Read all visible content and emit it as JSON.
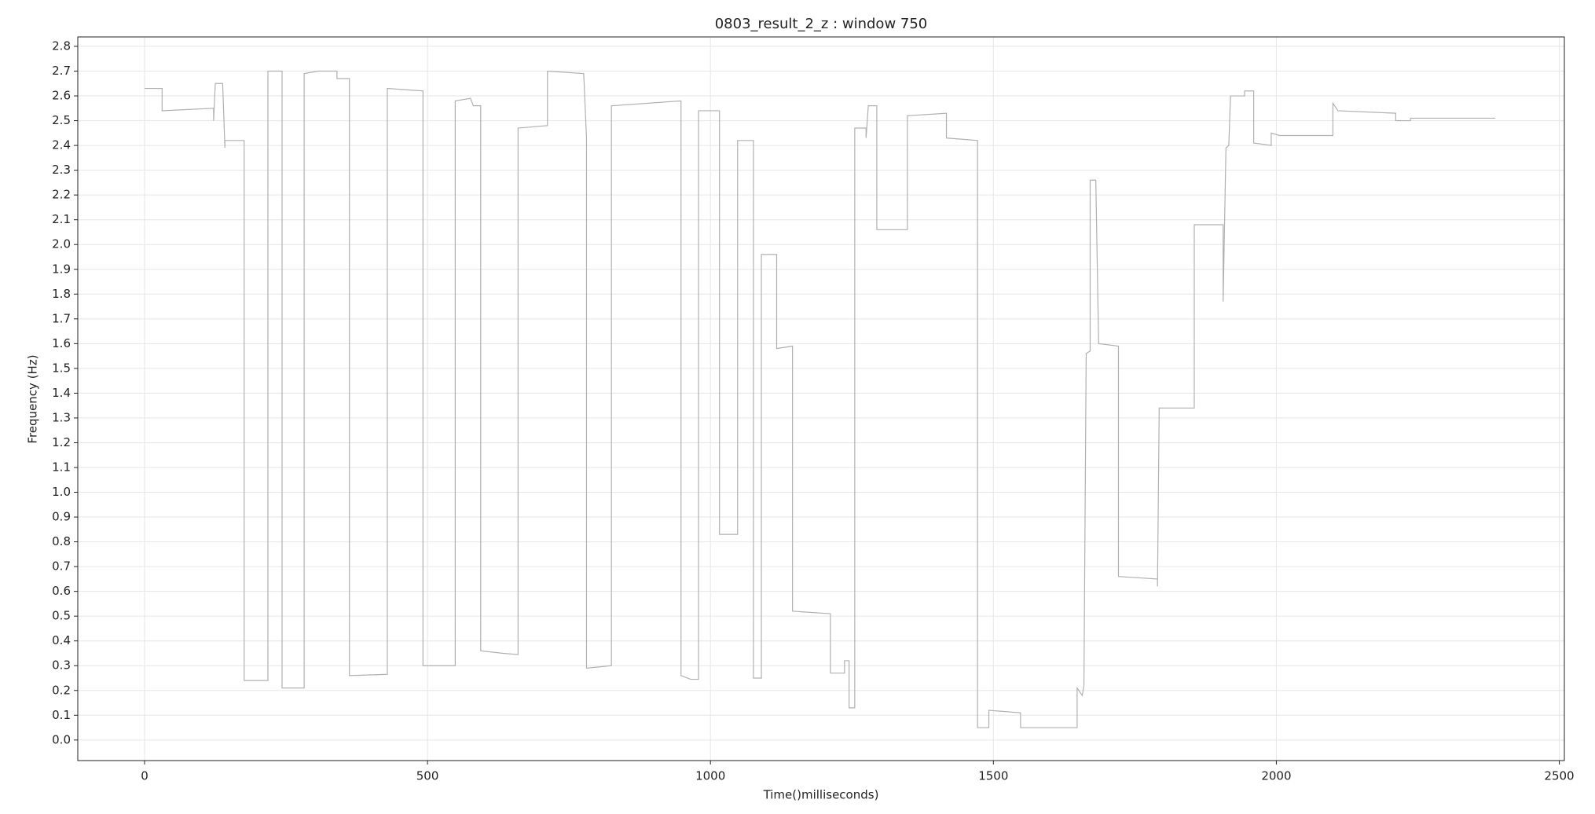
{
  "chart_data": {
    "type": "line",
    "title": "0803_result_2_z : window 750",
    "xlabel": "Time()milliseconds)",
    "ylabel": "Frequency (Hz)",
    "color": "#b0b0b0",
    "grid": true,
    "x": [
      0,
      31,
      31,
      122,
      122,
      125,
      138,
      142,
      142,
      176,
      176,
      218,
      218,
      243,
      243,
      282,
      282,
      307,
      340,
      340,
      362,
      362,
      429,
      429,
      492,
      492,
      549,
      549,
      576,
      581,
      594,
      594,
      634,
      660,
      660,
      712,
      712,
      776,
      781,
      781,
      825,
      825,
      948,
      948,
      965,
      979,
      979,
      1016,
      1016,
      1048,
      1048,
      1076,
      1076,
      1090,
      1090,
      1117,
      1117,
      1145,
      1145,
      1212,
      1212,
      1237,
      1237,
      1245,
      1245,
      1255,
      1255,
      1275,
      1275,
      1279,
      1294,
      1294,
      1348,
      1348,
      1417,
      1417,
      1472,
      1472,
      1492,
      1492,
      1548,
      1548,
      1648,
      1648,
      1657,
      1660,
      1664,
      1671,
      1671,
      1681,
      1686,
      1721,
      1721,
      1790,
      1790,
      1793,
      1855,
      1855,
      1906,
      1906,
      1911,
      1916,
      1919,
      1944,
      1944,
      1960,
      1960,
      1991,
      1991,
      2006,
      2100,
      2100,
      2109,
      2211,
      2211,
      2237,
      2237,
      2387
    ],
    "values": [
      2.63,
      2.63,
      2.54,
      2.55,
      2.5,
      2.65,
      2.65,
      2.39,
      2.42,
      2.42,
      0.24,
      0.24,
      2.7,
      2.7,
      0.21,
      0.21,
      2.69,
      2.7,
      2.7,
      2.67,
      2.67,
      0.26,
      0.265,
      2.63,
      2.62,
      0.3,
      0.3,
      2.58,
      2.59,
      2.56,
      2.56,
      0.36,
      0.35,
      0.345,
      2.47,
      2.48,
      2.7,
      2.69,
      2.43,
      0.29,
      0.3,
      2.56,
      2.58,
      0.26,
      0.245,
      0.245,
      2.54,
      2.54,
      0.83,
      0.83,
      2.42,
      2.42,
      0.25,
      0.25,
      1.96,
      1.96,
      1.58,
      1.59,
      0.52,
      0.51,
      0.27,
      0.27,
      0.32,
      0.32,
      0.13,
      0.13,
      2.47,
      2.47,
      2.43,
      2.56,
      2.56,
      2.06,
      2.06,
      2.52,
      2.53,
      2.43,
      2.42,
      0.05,
      0.05,
      0.12,
      0.11,
      0.05,
      0.05,
      0.21,
      0.18,
      0.22,
      1.56,
      1.57,
      2.26,
      2.26,
      1.6,
      1.59,
      0.66,
      0.65,
      0.62,
      1.34,
      1.34,
      2.08,
      2.08,
      1.77,
      2.39,
      2.4,
      2.6,
      2.6,
      2.62,
      2.62,
      2.41,
      2.4,
      2.45,
      2.44,
      2.44,
      2.57,
      2.54,
      2.53,
      2.5,
      2.5,
      2.51,
      2.51
    ],
    "xlim": [
      -118,
      2509
    ],
    "ylim": [
      -0.083,
      2.838
    ],
    "xticks": [
      0,
      500,
      1000,
      1500,
      2000,
      2500
    ],
    "yticks": [
      {
        "value": 0,
        "label": "0.0"
      },
      0.1,
      0.2,
      0.3,
      0.4,
      0.5,
      0.6,
      0.7,
      0.8,
      0.9,
      {
        "value": 1,
        "label": "1.0"
      },
      1.1,
      1.2,
      1.3,
      1.4,
      1.5,
      1.6,
      1.7,
      1.8,
      1.9,
      {
        "value": 2,
        "label": "2.0"
      },
      2.1,
      2.2,
      2.3,
      2.4,
      2.5,
      2.6,
      2.7,
      2.8
    ]
  }
}
